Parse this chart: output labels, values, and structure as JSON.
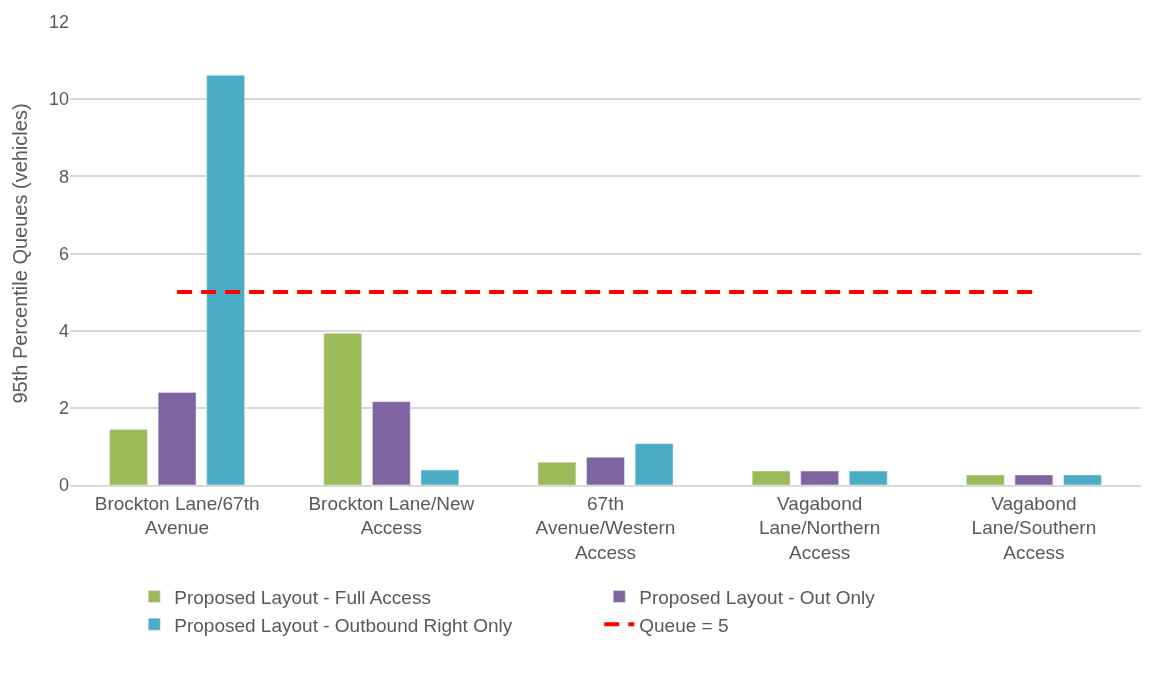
{
  "chart_data": {
    "type": "bar",
    "ylabel": "95th Percentile Queues (vehicles)",
    "categories": [
      "Brockton Lane/67th Avenue",
      "Brockton Lane/New Access",
      "67th Avenue/Western Access",
      "Vagabond Lane/Northern Access",
      "Vagabond Lane/Southern Access"
    ],
    "series": [
      {
        "name": "Proposed Layout - Full Access",
        "color": "#9bbb59",
        "values": [
          1.44,
          3.93,
          0.59,
          0.36,
          0.26
        ]
      },
      {
        "name": "Proposed Layout - Out Only",
        "color": "#8064a2",
        "values": [
          2.4,
          2.16,
          0.72,
          0.36,
          0.26
        ]
      },
      {
        "name": "Proposed Layout - Outbound Right Only",
        "color": "#4bacc6",
        "values": [
          10.62,
          0.39,
          1.07,
          0.36,
          0.26
        ]
      },
      {
        "name": "Queue = 5",
        "type": "line",
        "color": "#ff0000",
        "line_style": "dashed",
        "marker": "none",
        "values": [
          5,
          5,
          5,
          5,
          5
        ]
      }
    ],
    "ylim": [
      0,
      12
    ],
    "yticks": [
      0,
      2,
      4,
      6,
      8,
      10,
      12
    ],
    "grid": "y",
    "legend": "bottom"
  }
}
